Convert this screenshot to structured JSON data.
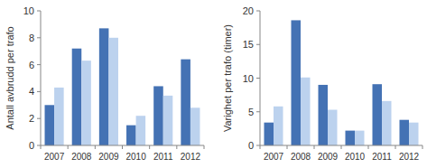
{
  "chart_data": [
    {
      "type": "bar",
      "ylabel": "Antall avbrudd per trafo",
      "categories": [
        "2007",
        "2008",
        "2009",
        "2010",
        "2011",
        "2012"
      ],
      "series": [
        {
          "color": "#4472b4",
          "values": [
            3.0,
            7.2,
            8.7,
            1.5,
            4.4,
            6.4
          ]
        },
        {
          "color": "#bcd2ee",
          "values": [
            4.3,
            6.3,
            8.0,
            2.2,
            3.7,
            2.8
          ]
        }
      ],
      "ylim": [
        0,
        10
      ],
      "yticks": [
        0,
        2,
        4,
        6,
        8,
        10
      ],
      "grid": false
    },
    {
      "type": "bar",
      "ylabel": "Varighet per trafo (timer)",
      "categories": [
        "2007",
        "2008",
        "2009",
        "2010",
        "2011",
        "2012"
      ],
      "series": [
        {
          "color": "#4472b4",
          "values": [
            3.4,
            18.6,
            9.0,
            2.2,
            9.1,
            3.8
          ]
        },
        {
          "color": "#bcd2ee",
          "values": [
            5.8,
            10.1,
            5.3,
            2.2,
            6.6,
            3.4
          ]
        }
      ],
      "ylim": [
        0,
        20
      ],
      "yticks": [
        0,
        5,
        10,
        15,
        20
      ],
      "grid": false
    }
  ]
}
